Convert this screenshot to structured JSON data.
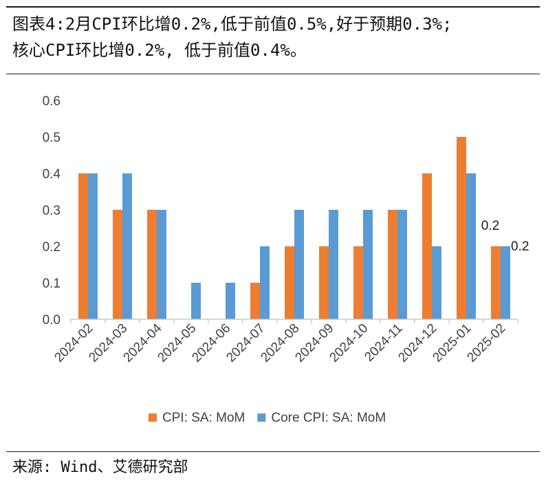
{
  "title_line1": "图表4:2月CPI环比增0.2%,低于前值0.5%,好于预期0.3%;",
  "title_line2": "核心CPI环比增0.2%, 低于前值0.4%。",
  "source": "来源: Wind、艾德研究部",
  "chart_data": {
    "type": "bar",
    "categories": [
      "2024-02",
      "2024-03",
      "2024-04",
      "2024-05",
      "2024-06",
      "2024-07",
      "2024-08",
      "2024-09",
      "2024-10",
      "2024-11",
      "2024-12",
      "2025-01",
      "2025-02"
    ],
    "series": [
      {
        "name": "CPI: SA: MoM",
        "color": "#ED7D31",
        "values": [
          0.4,
          0.3,
          0.3,
          0.0,
          0.0,
          0.1,
          0.2,
          0.2,
          0.2,
          0.3,
          0.4,
          0.5,
          0.2
        ]
      },
      {
        "name": "Core CPI: SA: MoM",
        "color": "#5B9BD5",
        "values": [
          0.4,
          0.4,
          0.3,
          0.1,
          0.1,
          0.2,
          0.3,
          0.3,
          0.3,
          0.3,
          0.2,
          0.4,
          0.2
        ]
      }
    ],
    "ylim": [
      0,
      0.6
    ],
    "yticks": [
      "0.0",
      "0.1",
      "0.2",
      "0.3",
      "0.4",
      "0.5",
      "0.6"
    ],
    "data_labels": [
      {
        "series": 0,
        "category": "2025-02",
        "text": "0.2"
      },
      {
        "series": 1,
        "category": "2025-02",
        "text": "0.2"
      }
    ],
    "grid": false,
    "legend": "bottom"
  }
}
